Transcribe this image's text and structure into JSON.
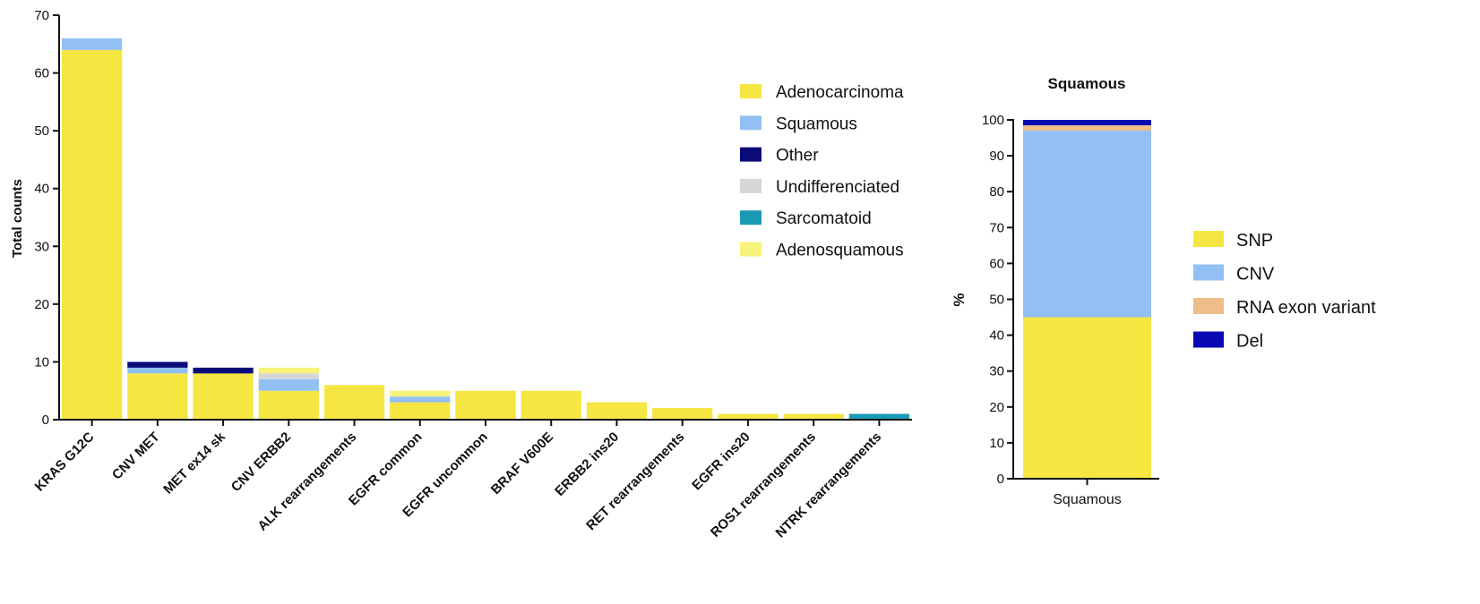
{
  "chart_data": [
    {
      "type": "bar",
      "stacked": true,
      "title": "",
      "xlabel": "",
      "ylabel": "Total counts",
      "ylim": [
        0,
        70
      ],
      "yticks": [
        "0",
        "10",
        "20",
        "30",
        "40",
        "50",
        "60",
        "70"
      ],
      "grid": false,
      "legend_position": "top-right",
      "categories": [
        "KRAS G12C",
        "CNV MET",
        "MET ex14 sk",
        "CNV ERBB2",
        "ALK rearrangements",
        "EGFR common",
        "EGFR uncommon",
        "BRAF V600E",
        "ERBB2 ins20",
        "RET rearrangements",
        "EGFR ins20",
        "ROS1 rearrangements",
        "NTRK rearrangements"
      ],
      "series": [
        {
          "name": "Adenocarcinoma",
          "color": "#f5e642",
          "values": [
            64,
            8,
            8,
            5,
            6,
            3,
            5,
            5,
            3,
            2,
            1,
            1,
            0
          ]
        },
        {
          "name": "Squamous",
          "color": "#92bff4",
          "values": [
            2,
            1,
            0,
            2,
            0,
            1,
            0,
            0,
            0,
            0,
            0,
            0,
            0
          ]
        },
        {
          "name": "Other",
          "color": "#0a0a78",
          "values": [
            0,
            1,
            1,
            0,
            0,
            0,
            0,
            0,
            0,
            0,
            0,
            0,
            0
          ]
        },
        {
          "name": "Undifferenciated",
          "color": "#d6d6d6",
          "values": [
            0,
            0,
            0,
            1,
            0,
            0,
            0,
            0,
            0,
            0,
            0,
            0,
            0
          ]
        },
        {
          "name": "Sarcomatoid",
          "color": "#1a9bb5",
          "values": [
            0,
            0,
            0,
            0,
            0,
            0,
            0,
            0,
            0,
            0,
            0,
            0,
            1
          ]
        },
        {
          "name": "Adenosquamous",
          "color": "#f7f27a",
          "values": [
            0,
            0,
            0,
            1,
            0,
            1,
            0,
            0,
            0,
            0,
            0,
            0,
            0
          ]
        }
      ]
    },
    {
      "type": "bar",
      "stacked": true,
      "title": "Squamous",
      "xlabel": "",
      "ylabel": "%",
      "ylim": [
        0,
        100
      ],
      "yticks": [
        "0",
        "10",
        "20",
        "30",
        "40",
        "50",
        "60",
        "70",
        "80",
        "90",
        "100"
      ],
      "grid": false,
      "legend_position": "right",
      "categories": [
        "Squamous"
      ],
      "series": [
        {
          "name": "SNP",
          "color": "#f5e642",
          "values": [
            45
          ]
        },
        {
          "name": "CNV",
          "color": "#92bff4",
          "values": [
            52
          ]
        },
        {
          "name": "RNA exon variant",
          "color": "#eebd8a",
          "values": [
            1.5
          ]
        },
        {
          "name": "Del",
          "color": "#0a0ab5",
          "values": [
            1.5
          ]
        }
      ]
    }
  ]
}
